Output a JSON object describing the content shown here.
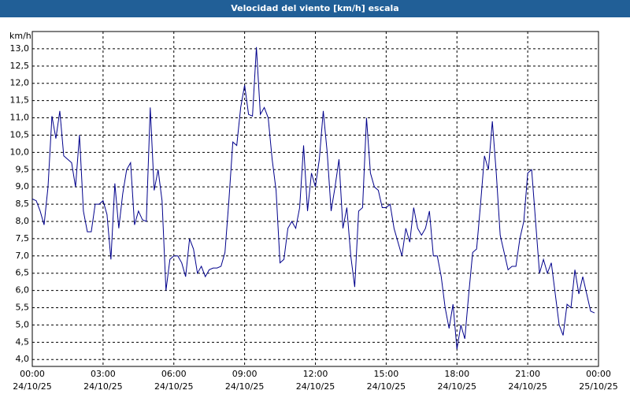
{
  "chart_data": {
    "type": "line",
    "title": "Velocidad del viento [km/h] escala",
    "y_label": "km/h",
    "color": "#00008b",
    "grid": true,
    "xlim": [
      0,
      1440
    ],
    "xticks": [
      {
        "value": 0,
        "label": "00:00",
        "date": "24/10/25"
      },
      {
        "value": 180,
        "label": "03:00",
        "date": "24/10/25"
      },
      {
        "value": 360,
        "label": "06:00",
        "date": "24/10/25"
      },
      {
        "value": 540,
        "label": "09:00",
        "date": "24/10/25"
      },
      {
        "value": 720,
        "label": "12:00",
        "date": "24/10/25"
      },
      {
        "value": 900,
        "label": "15:00",
        "date": "24/10/25"
      },
      {
        "value": 1080,
        "label": "18:00",
        "date": "24/10/25"
      },
      {
        "value": 1260,
        "label": "21:00",
        "date": "24/10/25"
      },
      {
        "value": 1440,
        "label": "00:00",
        "date": "25/10/25"
      }
    ],
    "ylim": [
      3.8,
      13.5
    ],
    "yticks": [
      {
        "value": 4.0,
        "label": "4,0"
      },
      {
        "value": 4.5,
        "label": "4,5"
      },
      {
        "value": 5.0,
        "label": "5,0"
      },
      {
        "value": 5.5,
        "label": "5,5"
      },
      {
        "value": 6.0,
        "label": "6,0"
      },
      {
        "value": 6.5,
        "label": "6,5"
      },
      {
        "value": 7.0,
        "label": "7,0"
      },
      {
        "value": 7.5,
        "label": "7,5"
      },
      {
        "value": 8.0,
        "label": "8,0"
      },
      {
        "value": 8.5,
        "label": "8,5"
      },
      {
        "value": 9.0,
        "label": "9,0"
      },
      {
        "value": 9.5,
        "label": "9,5"
      },
      {
        "value": 10.0,
        "label": "10,0"
      },
      {
        "value": 10.5,
        "label": "10,5"
      },
      {
        "value": 11.0,
        "label": "11,0"
      },
      {
        "value": 11.5,
        "label": "11,5"
      },
      {
        "value": 12.0,
        "label": "12,0"
      },
      {
        "value": 12.5,
        "label": "12,5"
      },
      {
        "value": 13.0,
        "label": "13,0"
      }
    ],
    "x": [
      0,
      10,
      20,
      30,
      40,
      50,
      60,
      70,
      80,
      90,
      100,
      110,
      120,
      130,
      140,
      150,
      160,
      170,
      180,
      190,
      200,
      210,
      220,
      230,
      240,
      250,
      260,
      270,
      280,
      290,
      300,
      310,
      320,
      330,
      340,
      350,
      360,
      370,
      380,
      390,
      400,
      410,
      420,
      430,
      440,
      450,
      460,
      470,
      480,
      490,
      500,
      510,
      520,
      530,
      540,
      550,
      560,
      570,
      580,
      590,
      600,
      610,
      620,
      630,
      640,
      650,
      660,
      670,
      680,
      690,
      700,
      710,
      720,
      730,
      740,
      750,
      760,
      770,
      780,
      790,
      800,
      810,
      820,
      830,
      840,
      850,
      860,
      870,
      880,
      890,
      900,
      910,
      920,
      930,
      940,
      950,
      960,
      970,
      980,
      990,
      1000,
      1010,
      1020,
      1030,
      1040,
      1050,
      1060,
      1070,
      1080,
      1090,
      1100,
      1110,
      1120,
      1130,
      1140,
      1150,
      1160,
      1170,
      1180,
      1190,
      1200,
      1210,
      1220,
      1230,
      1240,
      1250,
      1260,
      1270,
      1280,
      1290,
      1300,
      1310,
      1320,
      1330,
      1340,
      1350,
      1360,
      1370,
      1380,
      1390,
      1400,
      1410,
      1420,
      1430
    ],
    "values": [
      8.65,
      8.6,
      8.3,
      7.9,
      9.0,
      11.05,
      10.4,
      11.2,
      9.9,
      9.8,
      9.7,
      9.0,
      10.5,
      8.3,
      7.7,
      7.7,
      8.5,
      8.5,
      8.6,
      8.2,
      6.9,
      9.1,
      7.8,
      8.8,
      9.5,
      9.7,
      7.9,
      8.3,
      8.05,
      8.0,
      11.3,
      8.9,
      9.5,
      8.6,
      6.0,
      6.9,
      7.0,
      7.0,
      6.8,
      6.4,
      7.5,
      7.2,
      6.5,
      6.7,
      6.4,
      6.6,
      6.65,
      6.65,
      6.7,
      7.1,
      8.6,
      10.3,
      10.2,
      11.3,
      11.95,
      11.1,
      11.05,
      13.05,
      11.1,
      11.3,
      11.0,
      9.8,
      8.9,
      6.8,
      6.9,
      7.8,
      8.0,
      7.8,
      8.4,
      10.2,
      8.3,
      9.4,
      9.0,
      9.8,
      11.2,
      10.0,
      8.3,
      9.0,
      9.8,
      7.8,
      8.4,
      7.0,
      6.1,
      8.3,
      8.4,
      11.0,
      9.4,
      9.0,
      8.9,
      8.4,
      8.4,
      8.5,
      7.8,
      7.4,
      7.0,
      7.8,
      7.4,
      8.4,
      7.8,
      7.6,
      7.8,
      8.3,
      7.0,
      7.0,
      6.4,
      5.5,
      4.9,
      5.6,
      4.3,
      5.0,
      4.6,
      5.9,
      7.1,
      7.2,
      8.5,
      9.9,
      9.5,
      10.9,
      9.4,
      7.6,
      7.1,
      6.6,
      6.7,
      6.7,
      7.5,
      8.0,
      9.4,
      9.5,
      8.0,
      6.5,
      6.9,
      6.5,
      6.8,
      5.9,
      5.0,
      4.7,
      5.6,
      5.5,
      6.6,
      5.9,
      6.4,
      5.9,
      5.4,
      5.35
    ]
  }
}
